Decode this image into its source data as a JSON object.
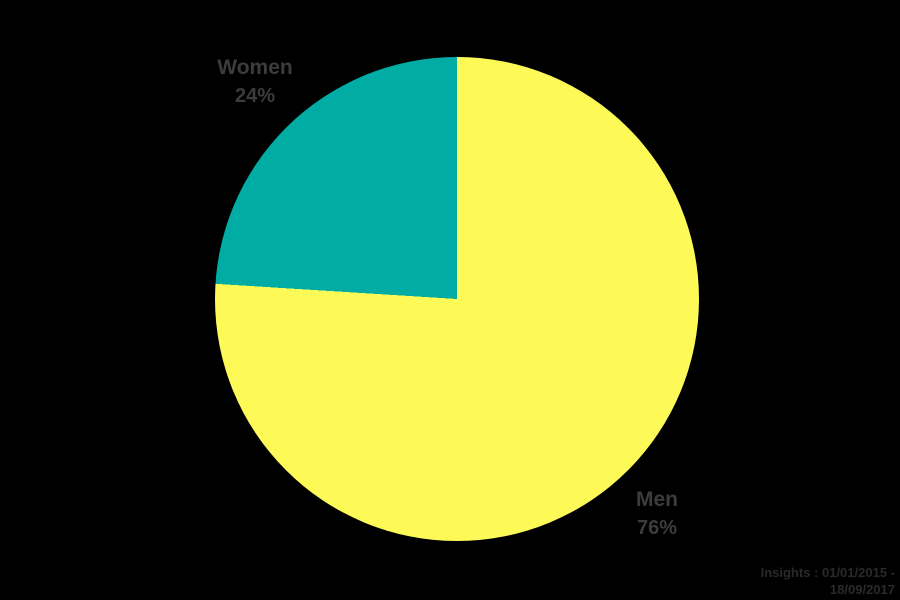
{
  "background": "#000000",
  "chart_data": {
    "type": "pie",
    "title": "",
    "categories": [
      "Women",
      "Men"
    ],
    "values": [
      24,
      76
    ],
    "slices": [
      {
        "label": "Women",
        "value": 24,
        "percent_label": "24%",
        "color": "#00ACA4"
      },
      {
        "label": "Men",
        "value": 76,
        "percent_label": "76%",
        "color": "#FDFA57"
      }
    ],
    "layout": {
      "start_angle": "12 o'clock",
      "men_slice_direction": "clockwise from top",
      "women_slice_position": "upper-left, ending at 12 o'clock",
      "legend": "none",
      "labels": "outside, stacked name over percent"
    },
    "label_color": "#3C3C3C"
  },
  "watermark": {
    "line1": "Insights : 01/01/2015 -",
    "line2": "18/09/2017",
    "color": "#2A2A2A"
  }
}
